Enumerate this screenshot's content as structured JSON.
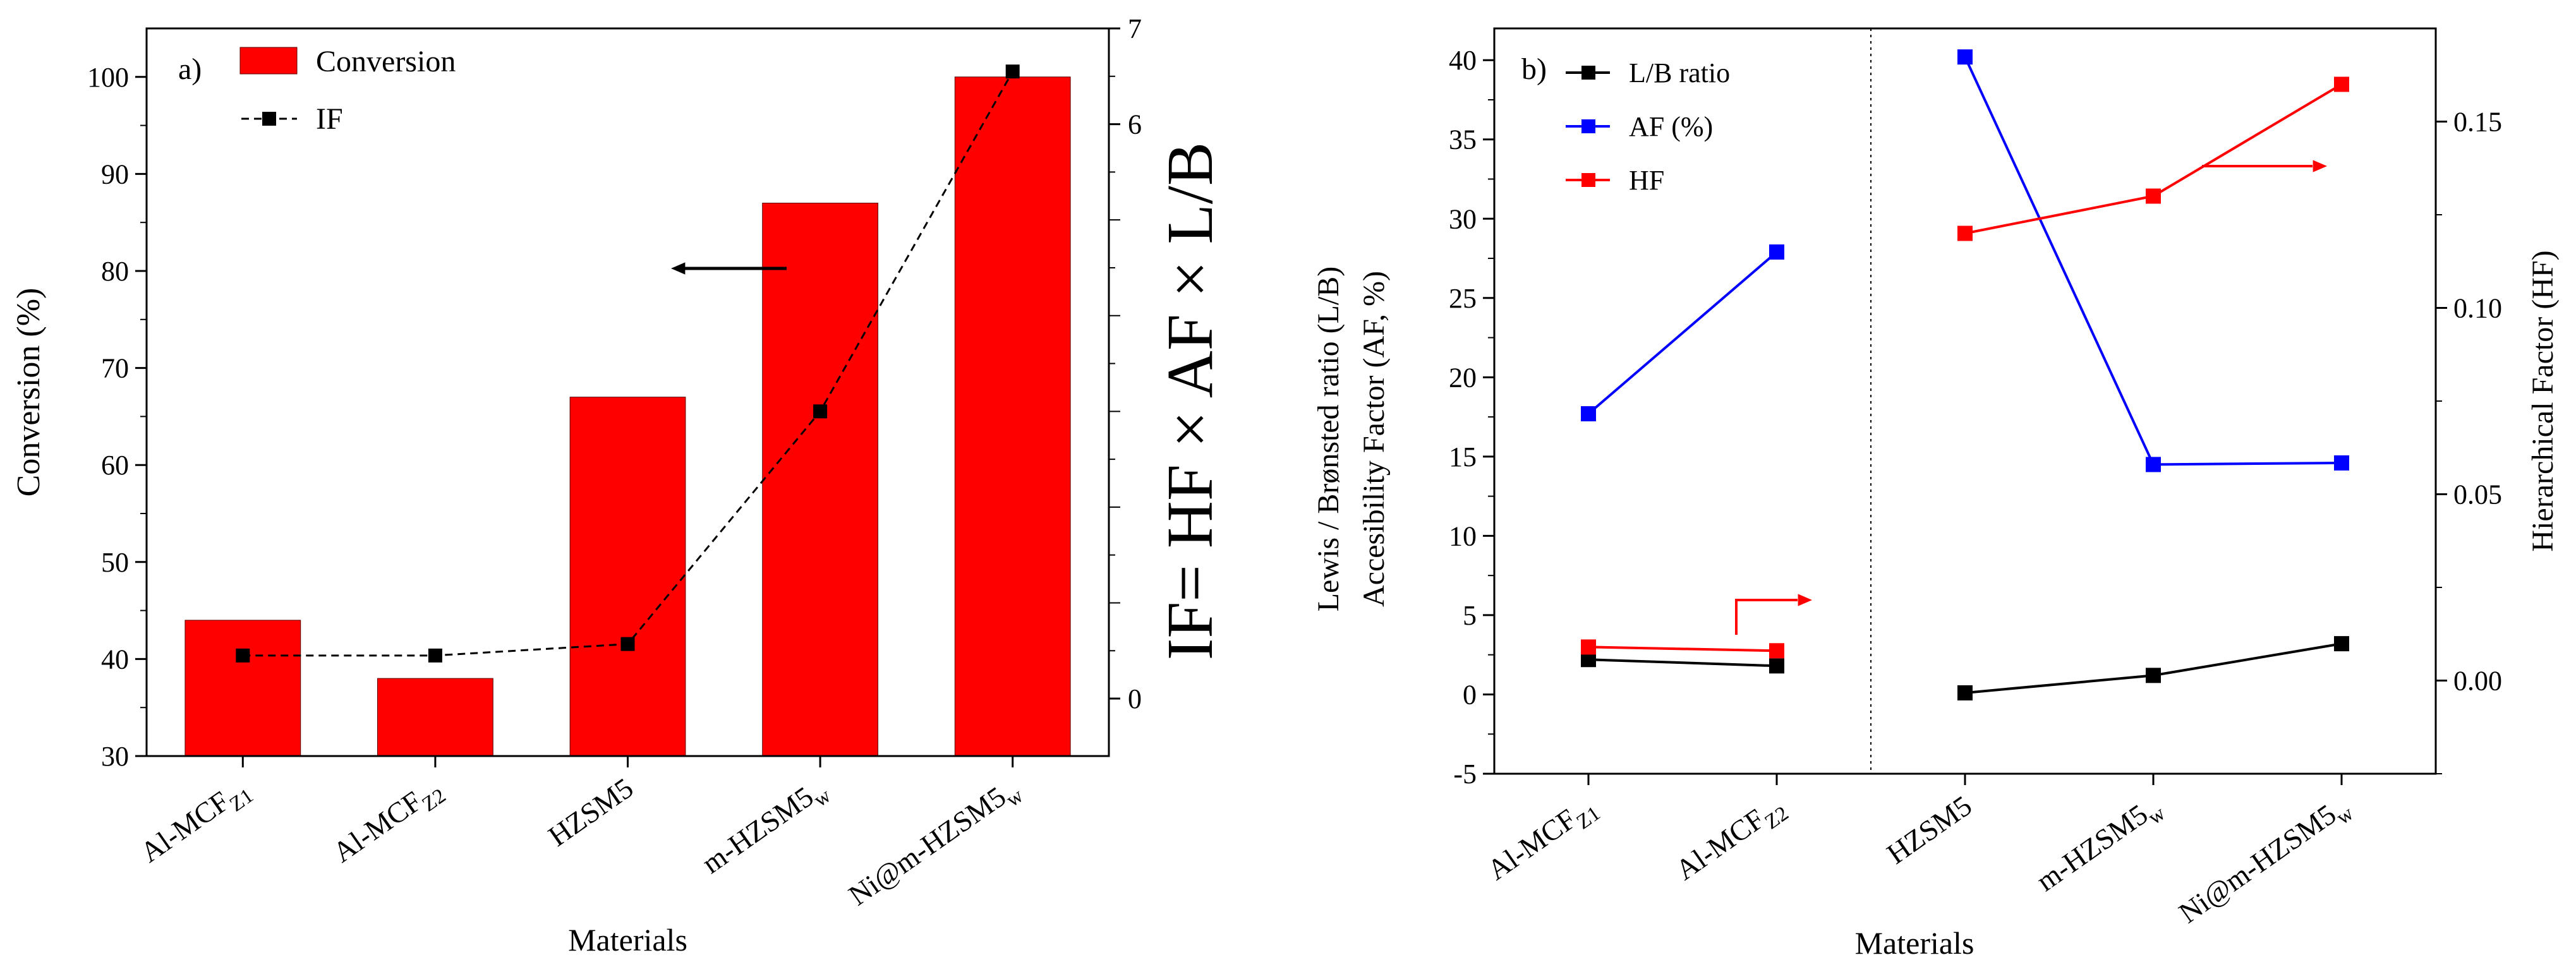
{
  "chart_data": [
    {
      "type": "bar",
      "panel_label": "a)",
      "categories": [
        "Al-MCF_Z1",
        "Al-MCF_Z2",
        "HZSM5",
        "m-HZSM5_w",
        "Ni@m-HZSM5_w"
      ],
      "category_labels": [
        {
          "main": "Al-MCF",
          "sub": "Z1"
        },
        {
          "main": "Al-MCF",
          "sub": "Z2"
        },
        {
          "main": "HZSM5",
          "sub": ""
        },
        {
          "main": "m-HZSM5",
          "sub": "w"
        },
        {
          "main": "Ni@m-HZSM5",
          "sub": "w"
        }
      ],
      "series": [
        {
          "name": "Conversion",
          "axis": "left",
          "style": "bar",
          "color": "#ff0000",
          "values": [
            44,
            38,
            67,
            87,
            100
          ]
        },
        {
          "name": "IF",
          "axis": "right",
          "style": "dashed-line-square",
          "color": "#000000",
          "values": [
            0.45,
            0.45,
            0.57,
            3.0,
            6.55
          ]
        }
      ],
      "xlabel": "Materials",
      "ylabel": "Conversion  (%)",
      "ylim": [
        30,
        105
      ],
      "yticks": [
        "30",
        "40",
        "50",
        "60",
        "70",
        "80",
        "90",
        "100"
      ],
      "y2label": "IF= HF × AF × L/B",
      "y2lim": [
        -0.6,
        7
      ],
      "y2ticks": [
        "0",
        "6",
        "7"
      ],
      "legend": [
        {
          "label": "Conversion"
        },
        {
          "label": "IF"
        }
      ],
      "legend_position": "top-left",
      "annotation": "arrow pointing to left axis"
    },
    {
      "type": "line",
      "panel_label": "b)",
      "categories": [
        "Al-MCF_Z1",
        "Al-MCF_Z2",
        "HZSM5",
        "m-HZSM5_w",
        "Ni@m-HZSM5_w"
      ],
      "category_labels": [
        {
          "main": "Al-MCF",
          "sub": "Z1"
        },
        {
          "main": "Al-MCF",
          "sub": "Z2"
        },
        {
          "main": "HZSM5",
          "sub": ""
        },
        {
          "main": "m-HZSM5",
          "sub": "w"
        },
        {
          "main": "Ni@m-HZSM5",
          "sub": "w"
        }
      ],
      "groups": [
        [
          0,
          1
        ],
        [
          2,
          3,
          4
        ]
      ],
      "series": [
        {
          "name": "L/B ratio",
          "axis": "left",
          "color": "#000000",
          "values": [
            2.2,
            1.8,
            0.1,
            1.2,
            3.2
          ]
        },
        {
          "name": "AF (%)",
          "axis": "left",
          "color": "#0000ff",
          "values": [
            17.7,
            27.9,
            40.2,
            14.5,
            14.6
          ]
        },
        {
          "name": "HF",
          "axis": "right",
          "color": "#ff0000",
          "values": [
            0.009,
            0.008,
            0.12,
            0.13,
            0.16
          ]
        }
      ],
      "xlabel": "Materials",
      "ylabel_lines": [
        "Lewis / Brønsted ratio (L/B)",
        "Accesibility Factor  (AF, %)"
      ],
      "ylim": [
        -5,
        42
      ],
      "yticks": [
        "-5",
        "0",
        "5",
        "10",
        "15",
        "20",
        "25",
        "30",
        "35",
        "40"
      ],
      "y2label": "Hierarchical Factor (HF)",
      "y2lim": [
        -0.025,
        0.175
      ],
      "y2ticks": [
        "0.00",
        "0.05",
        "0.10",
        "0.15"
      ],
      "legend": [
        {
          "label": "L/B ratio"
        },
        {
          "label": "AF (%)"
        },
        {
          "label": "HF"
        }
      ],
      "legend_position": "top-left",
      "annotation": "arrows pointing to right axis"
    }
  ]
}
